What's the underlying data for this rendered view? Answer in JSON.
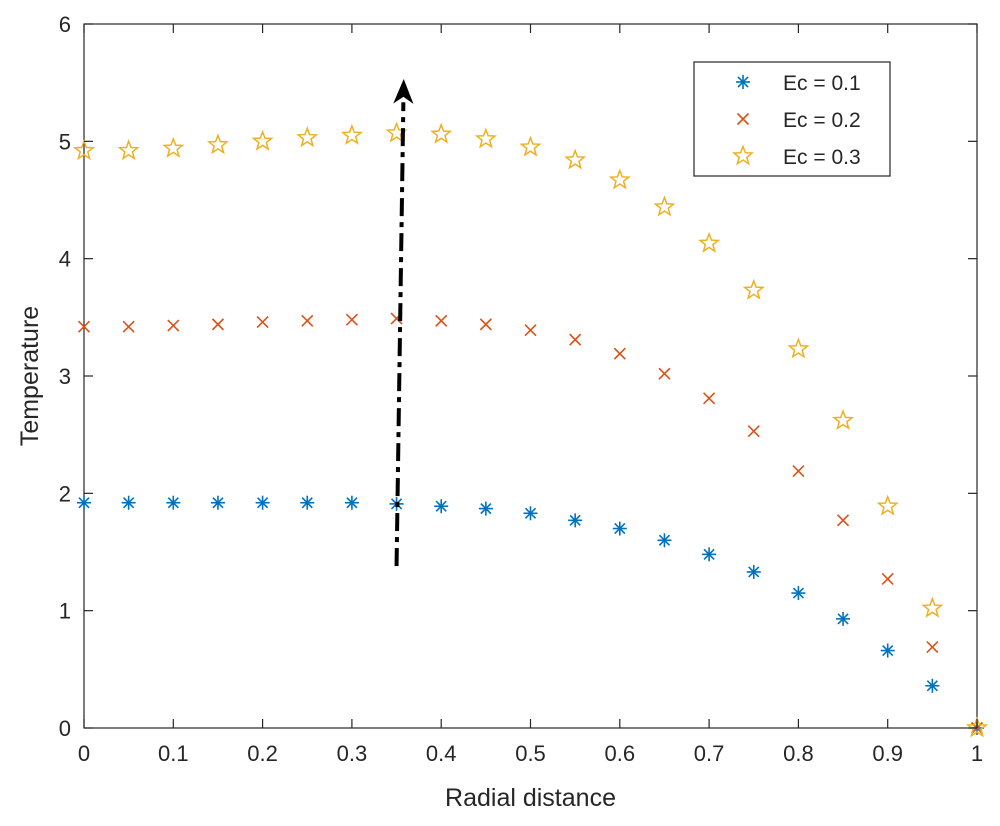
{
  "chart_data": {
    "type": "scatter",
    "title": "",
    "xlabel": "Radial distance",
    "ylabel": "Temperature",
    "xlim": [
      0,
      1
    ],
    "ylim": [
      0,
      6
    ],
    "xticks": [
      0,
      0.1,
      0.2,
      0.3,
      0.4,
      0.5,
      0.6,
      0.7,
      0.8,
      0.9,
      1
    ],
    "xtick_labels": [
      "0",
      "0.1",
      "0.2",
      "0.3",
      "0.4",
      "0.5",
      "0.6",
      "0.7",
      "0.8",
      "0.9",
      "1"
    ],
    "yticks": [
      0,
      1,
      2,
      3,
      4,
      5,
      6
    ],
    "ytick_labels": [
      "0",
      "1",
      "2",
      "3",
      "4",
      "5",
      "6"
    ],
    "grid": false,
    "legend_position": "top-right",
    "x": [
      0,
      0.05,
      0.1,
      0.15,
      0.2,
      0.25,
      0.3,
      0.35,
      0.4,
      0.45,
      0.5,
      0.55,
      0.6,
      0.65,
      0.7,
      0.75,
      0.8,
      0.85,
      0.9,
      0.95,
      1
    ],
    "series": [
      {
        "name": "Ec = 0.1",
        "marker": "asterisk",
        "color": "#0072BD",
        "values": [
          1.92,
          1.92,
          1.92,
          1.92,
          1.92,
          1.92,
          1.92,
          1.91,
          1.89,
          1.87,
          1.83,
          1.77,
          1.7,
          1.6,
          1.48,
          1.33,
          1.15,
          0.93,
          0.66,
          0.36,
          0
        ]
      },
      {
        "name": "Ec = 0.2",
        "marker": "x",
        "color": "#D95319",
        "values": [
          3.42,
          3.42,
          3.43,
          3.44,
          3.46,
          3.47,
          3.48,
          3.49,
          3.47,
          3.44,
          3.39,
          3.31,
          3.19,
          3.02,
          2.81,
          2.53,
          2.19,
          1.77,
          1.27,
          0.69,
          0
        ]
      },
      {
        "name": "Ec = 0.3",
        "marker": "star",
        "color": "#EDB120",
        "values": [
          4.92,
          4.92,
          4.94,
          4.97,
          5.0,
          5.03,
          5.05,
          5.07,
          5.06,
          5.02,
          4.95,
          4.84,
          4.67,
          4.44,
          4.13,
          3.73,
          3.23,
          2.62,
          1.89,
          1.02,
          0
        ]
      }
    ],
    "annotations": [
      {
        "type": "arrow",
        "style": "dash-dot",
        "color": "#000000",
        "from": [
          0.35,
          1.38
        ],
        "to": [
          0.358,
          5.52
        ]
      }
    ]
  }
}
